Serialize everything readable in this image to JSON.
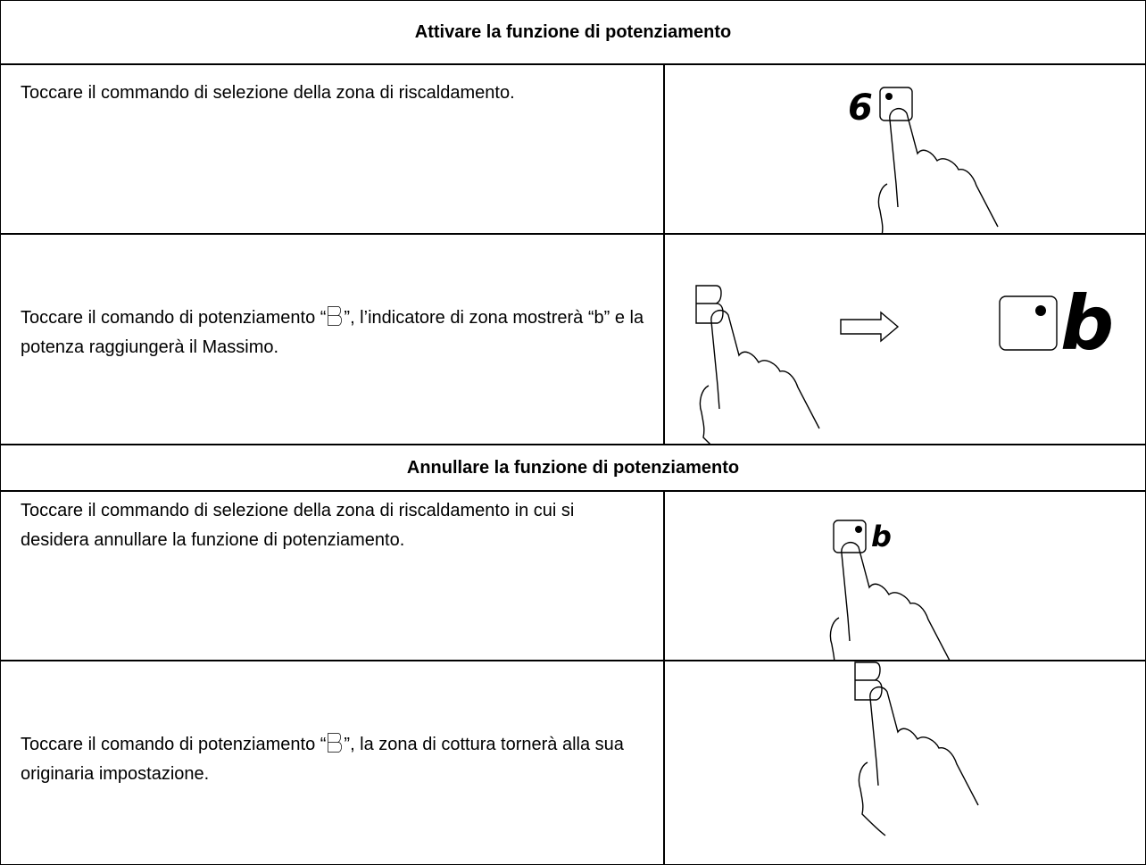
{
  "sections": [
    {
      "title": "Attivare la funzione di potenziamento",
      "rows": [
        {
          "text": "Toccare il commando di selezione della zona di riscaldamento.",
          "display": "6"
        },
        {
          "text_before": "Toccare il comando di potenziamento “",
          "text_after": "”, l’indicatore di zona mostrerà “b” e la potenza raggiungerà il Massimo.",
          "display": "b"
        }
      ]
    },
    {
      "title": "Annullare la funzione di potenziamento",
      "rows": [
        {
          "text": "Toccare il commando di selezione della zona di riscaldamento in cui si desidera annullare la funzione di potenziamento.",
          "display": "b"
        },
        {
          "text_before": "Toccare il comando di potenziamento “",
          "text_after": "”, la zona di cottura tornerà alla sua originaria impostazione."
        }
      ]
    }
  ]
}
